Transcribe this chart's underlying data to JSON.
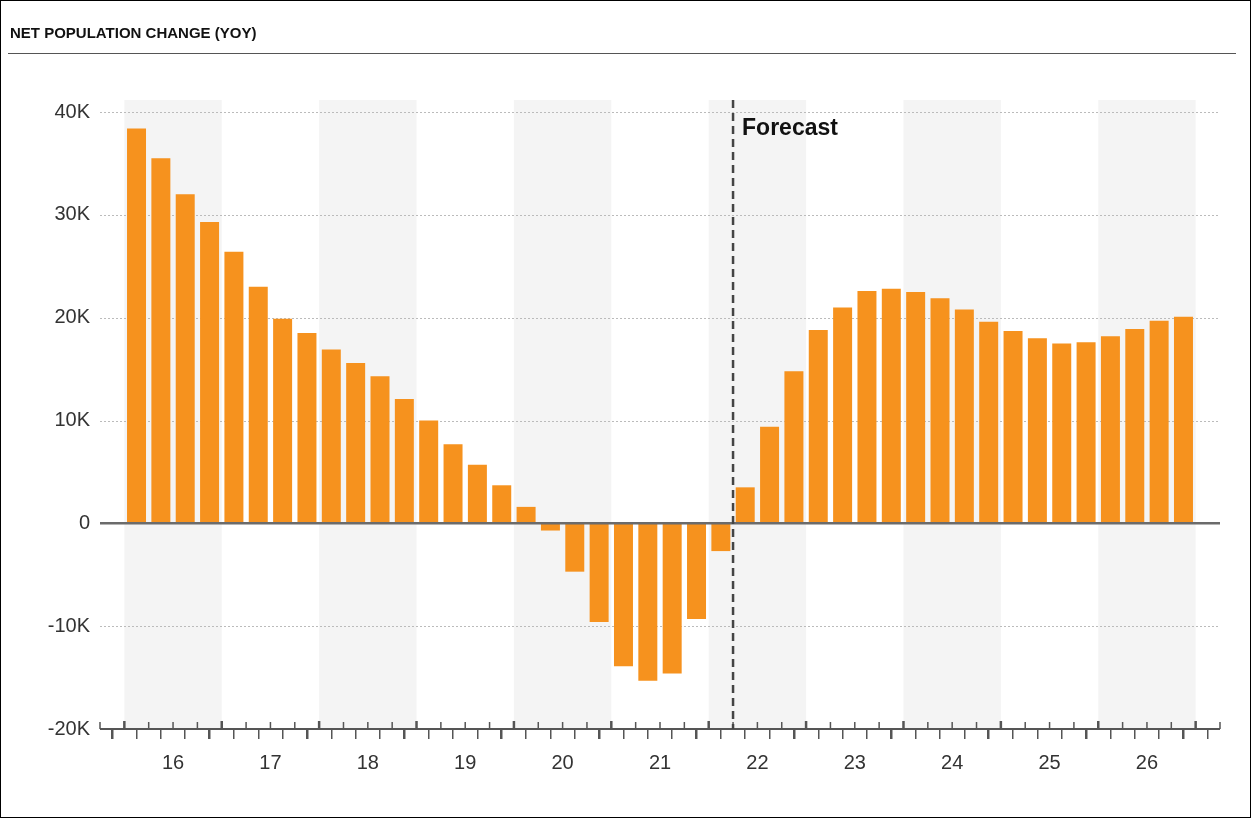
{
  "chart_data": {
    "type": "bar",
    "title": "NET POPULATION CHANGE (YOY)",
    "x": [
      15.625,
      15.875,
      16.125,
      16.375,
      16.625,
      16.875,
      17.125,
      17.375,
      17.625,
      17.875,
      18.125,
      18.375,
      18.625,
      18.875,
      19.125,
      19.375,
      19.625,
      19.875,
      20.125,
      20.375,
      20.625,
      20.875,
      21.125,
      21.375,
      21.625,
      21.875,
      22.125,
      22.375,
      22.625,
      22.875,
      23.125,
      23.375,
      23.625,
      23.875,
      24.125,
      24.375,
      24.625,
      24.875,
      25.125,
      25.375,
      25.625,
      25.875,
      26.125,
      26.375
    ],
    "values": [
      38400,
      35500,
      32000,
      29300,
      26400,
      23000,
      19900,
      18500,
      16900,
      15600,
      14300,
      12100,
      10000,
      7700,
      5700,
      3700,
      1600,
      -700,
      -4700,
      -9600,
      -13900,
      -15300,
      -14600,
      -9300,
      -2700,
      3500,
      9400,
      14800,
      18800,
      21000,
      22600,
      22800,
      22500,
      21900,
      20800,
      19600,
      18700,
      18000,
      17500,
      17600,
      18200,
      18900,
      19700,
      20100
    ],
    "color": "#f6921e",
    "xlim": [
      15.25,
      26.75
    ],
    "xticks": [
      {
        "value": 15.25,
        "label": null
      },
      {
        "value": 15.5,
        "label": null
      },
      {
        "value": 15.75,
        "label": null
      },
      16,
      {
        "value": 16.25,
        "label": null
      },
      {
        "value": 16.5,
        "label": null
      },
      {
        "value": 16.75,
        "label": null
      },
      17,
      {
        "value": 17.25,
        "label": null
      },
      {
        "value": 17.5,
        "label": null
      },
      {
        "value": 17.75,
        "label": null
      },
      18,
      {
        "value": 18.25,
        "label": null
      },
      {
        "value": 18.5,
        "label": null
      },
      {
        "value": 18.75,
        "label": null
      },
      19,
      {
        "value": 19.25,
        "label": null
      },
      {
        "value": 19.5,
        "label": null
      },
      {
        "value": 19.75,
        "label": null
      },
      20,
      {
        "value": 20.25,
        "label": null
      },
      {
        "value": 20.5,
        "label": null
      },
      {
        "value": 20.75,
        "label": null
      },
      21,
      {
        "value": 21.25,
        "label": null
      },
      {
        "value": 21.5,
        "label": null
      },
      {
        "value": 21.75,
        "label": null
      },
      22,
      {
        "value": 22.25,
        "label": null
      },
      {
        "value": 22.5,
        "label": null
      },
      {
        "value": 22.75,
        "label": null
      },
      23,
      {
        "value": 23.25,
        "label": null
      },
      {
        "value": 23.5,
        "label": null
      },
      {
        "value": 23.75,
        "label": null
      },
      24,
      {
        "value": 24.25,
        "label": null
      },
      {
        "value": 24.5,
        "label": null
      },
      {
        "value": 24.75,
        "label": null
      },
      25,
      {
        "value": 25.25,
        "label": null
      },
      {
        "value": 25.5,
        "label": null
      },
      {
        "value": 25.75,
        "label": null
      },
      26,
      {
        "value": 26.25,
        "label": null
      },
      {
        "value": 26.5,
        "label": null
      },
      {
        "value": 26.75,
        "label": null
      }
    ],
    "ylim": [
      -20000,
      40000
    ],
    "yticks": [
      {
        "value": -20000,
        "label": "-20K"
      },
      {
        "value": -10000,
        "label": "-10K"
      },
      0,
      {
        "value": 10000,
        "label": "10K"
      },
      {
        "value": 20000,
        "label": "20K"
      },
      {
        "value": 30000,
        "label": "30K"
      },
      {
        "value": 40000,
        "label": "40K"
      }
    ],
    "grid": "y",
    "ref_lines": [
      {
        "axis": "x",
        "value": 21.75,
        "label": "Forecast",
        "line_style": "dashed",
        "color": "#444444"
      }
    ],
    "bands": [
      {
        "axis": "x",
        "from": 15.5,
        "to": 16.5,
        "color": "#f4f4f4"
      },
      {
        "axis": "x",
        "from": 17.5,
        "to": 18.5,
        "color": "#f4f4f4"
      },
      {
        "axis": "x",
        "from": 19.5,
        "to": 20.5,
        "color": "#f4f4f4"
      },
      {
        "axis": "x",
        "from": 21.5,
        "to": 22.5,
        "color": "#f4f4f4"
      },
      {
        "axis": "x",
        "from": 23.5,
        "to": 24.5,
        "color": "#f4f4f4"
      },
      {
        "axis": "x",
        "from": 25.5,
        "to": 26.5,
        "color": "#f4f4f4"
      }
    ]
  }
}
